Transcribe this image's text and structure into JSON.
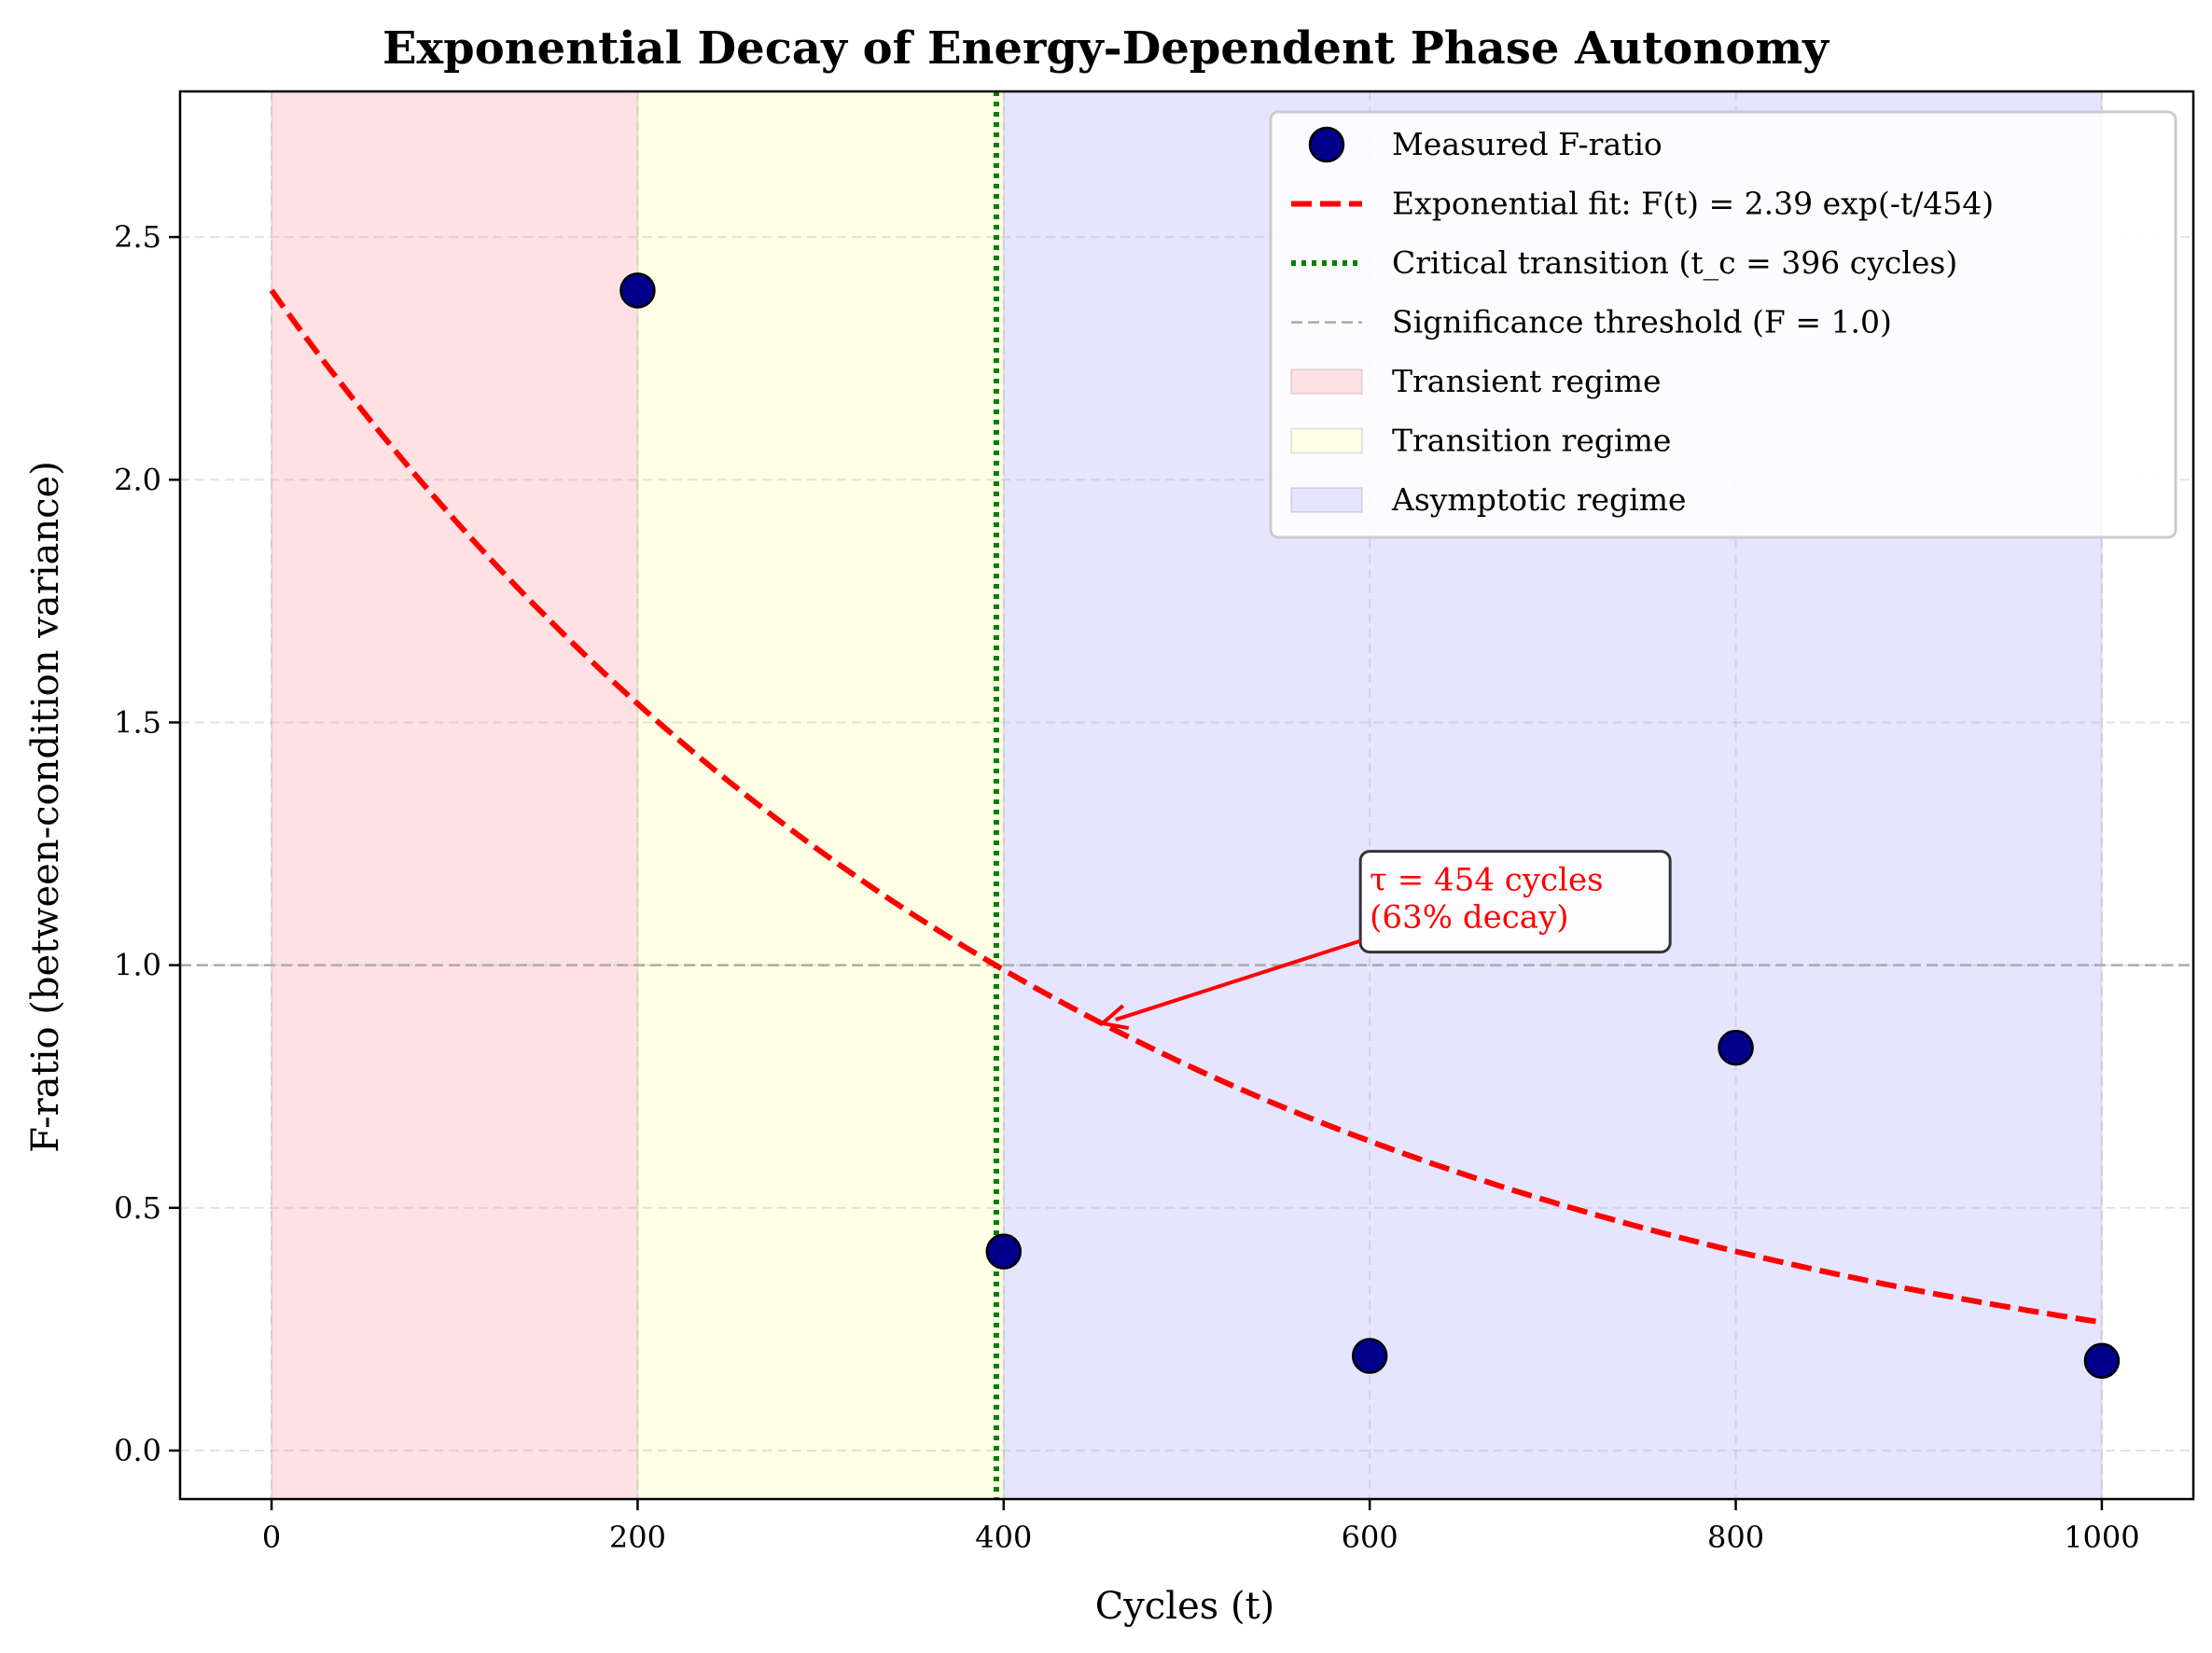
{
  "chart_data": {
    "type": "scatter",
    "title": "Exponential Decay of Energy-Dependent Phase Autonomy",
    "xlabel": "Cycles (t)",
    "ylabel": "F-ratio (between-condition variance)",
    "xlim": [
      -50,
      1050
    ],
    "ylim": [
      -0.1,
      2.8
    ],
    "xticks": [
      0,
      200,
      400,
      600,
      800,
      1000
    ],
    "xtick_labels": [
      "0",
      "200",
      "400",
      "600",
      "800",
      "1000"
    ],
    "yticks": [
      0.0,
      0.5,
      1.0,
      1.5,
      2.0,
      2.5
    ],
    "ytick_labels": [
      "0.0",
      "0.5",
      "1.0",
      "1.5",
      "2.0",
      "2.5"
    ],
    "grid": true,
    "legend_position": "top-right",
    "series": [
      {
        "name": "Measured F-ratio",
        "kind": "scatter",
        "color": "#00008b",
        "x": [
          200,
          400,
          600,
          800,
          1000
        ],
        "y": [
          2.39,
          0.41,
          0.195,
          0.83,
          0.185
        ]
      },
      {
        "name": "Exponential fit: F(t) = 2.39 exp(-t/454)",
        "kind": "line",
        "style": "dashed",
        "color": "#ff0000",
        "amplitude": 2.39,
        "tau": 454,
        "x_start": 0,
        "x_end": 1000
      },
      {
        "name": "Critical transition (t_c = 396 cycles)",
        "kind": "vline",
        "style": "dotted",
        "color": "#008000",
        "x": 396
      },
      {
        "name": "Significance threshold (F = 1.0)",
        "kind": "hline",
        "style": "dashed",
        "color": "#aaaaaa",
        "y": 1.0
      }
    ],
    "regions": [
      {
        "name": "Transient regime",
        "x_start": 0,
        "x_end": 200,
        "color": "#ffe1e3"
      },
      {
        "name": "Transition regime",
        "x_start": 200,
        "x_end": 400,
        "color": "#ffffe5"
      },
      {
        "name": "Asymptotic regime",
        "x_start": 400,
        "x_end": 1000,
        "color": "#e5e5ff"
      }
    ],
    "annotation": {
      "lines": [
        "τ = 454 cycles",
        "(63% decay)"
      ],
      "color": "#ff0000",
      "text_x": 600,
      "text_y": 1.05,
      "arrow_x": 454,
      "arrow_y": 0.88
    }
  }
}
